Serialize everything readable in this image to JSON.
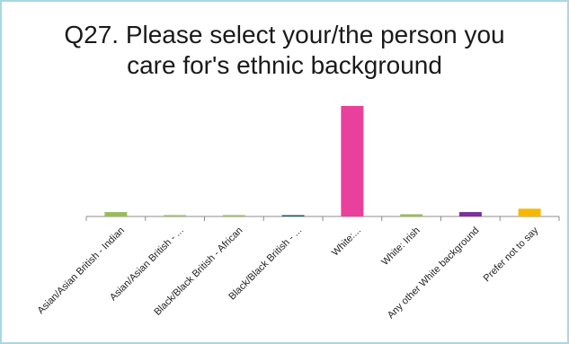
{
  "chart_data": {
    "type": "bar",
    "title_lines": [
      "Q27. Please select your/the person you",
      "care for's ethnic background"
    ],
    "categories": [
      "Asian/Asian British - Indian",
      "Asian/Asian British - ...",
      "Black/Black British - African",
      "Black/Black British - ...",
      "White:...",
      "White: Irish",
      "Any other White background",
      "Prefer not to say"
    ],
    "values": [
      4,
      1,
      1,
      1,
      100,
      2,
      4,
      7
    ],
    "colors": [
      "#9bbb59",
      "#9bbb59",
      "#9bbb59",
      "#1f5f6e",
      "#e8409b",
      "#9bbb59",
      "#7b2fa0",
      "#f5b800"
    ],
    "ylim": [
      0,
      105
    ],
    "grid": false,
    "legend": "none"
  }
}
